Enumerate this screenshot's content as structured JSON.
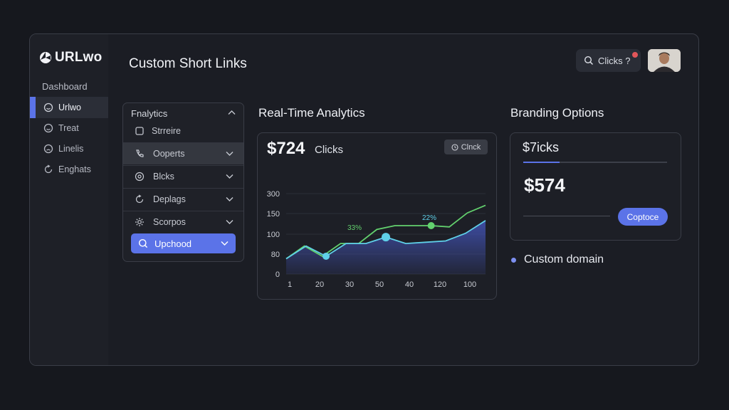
{
  "app": {
    "logo_text": "URLwo"
  },
  "sidebar": {
    "heading": "Dashboard",
    "items": [
      {
        "label": "Urlwo",
        "icon": "smile-icon",
        "active": true
      },
      {
        "label": "Treat",
        "icon": "smile-icon",
        "active": false
      },
      {
        "label": "Linelis",
        "icon": "smile-icon",
        "active": false
      },
      {
        "label": "Enghats",
        "icon": "refresh-icon",
        "active": false
      }
    ]
  },
  "header": {
    "title": "Custom Short Links",
    "search_label": "Clicks ?",
    "search_icon": "search-icon",
    "avatar": "user-avatar"
  },
  "analytics_panel": {
    "title": "Fnalytics",
    "sub_item": "Strreire",
    "rows": [
      {
        "label": "Ooperts",
        "icon": "phone-icon",
        "highlighted": true
      },
      {
        "label": "Blcks",
        "icon": "target-icon",
        "highlighted": false
      },
      {
        "label": "Deplags",
        "icon": "refresh-icon",
        "highlighted": false
      },
      {
        "label": "Scorpos",
        "icon": "settings-icon",
        "highlighted": false
      }
    ],
    "active_item": {
      "label": "Upchood",
      "icon": "search-icon"
    }
  },
  "analytics": {
    "title": "Real-Time Analytics",
    "value": "$724",
    "value_label": "Clicks",
    "button_label": "Clnck",
    "colors": {
      "area": "#3f4ea8",
      "line_primary": "#5fd0e8",
      "line_secondary": "#63d16e"
    }
  },
  "chart_data": {
    "type": "line",
    "title": "",
    "xlabel": "",
    "ylabel": "",
    "x_tick_labels": [
      "1",
      "20",
      "30",
      "50",
      "40",
      "120",
      "100"
    ],
    "y_tick_labels": [
      "0",
      "80",
      "100",
      "150",
      "300"
    ],
    "series": [
      {
        "values": [
          60,
          110,
          70,
          120,
          120,
          145,
          120,
          125,
          130,
          160,
          210
        ]
      },
      {
        "values": [
          60,
          110,
          70,
          120,
          120,
          175,
          190,
          190,
          190,
          185,
          240,
          270
        ]
      }
    ],
    "data_labels": [
      "33%",
      "22%"
    ]
  },
  "branding": {
    "title": "Branding Options",
    "label": "$7icks",
    "progress_fraction": 0.25,
    "value": "$574",
    "button_label": "Coptoce",
    "bullet_item": "Custom domain"
  }
}
